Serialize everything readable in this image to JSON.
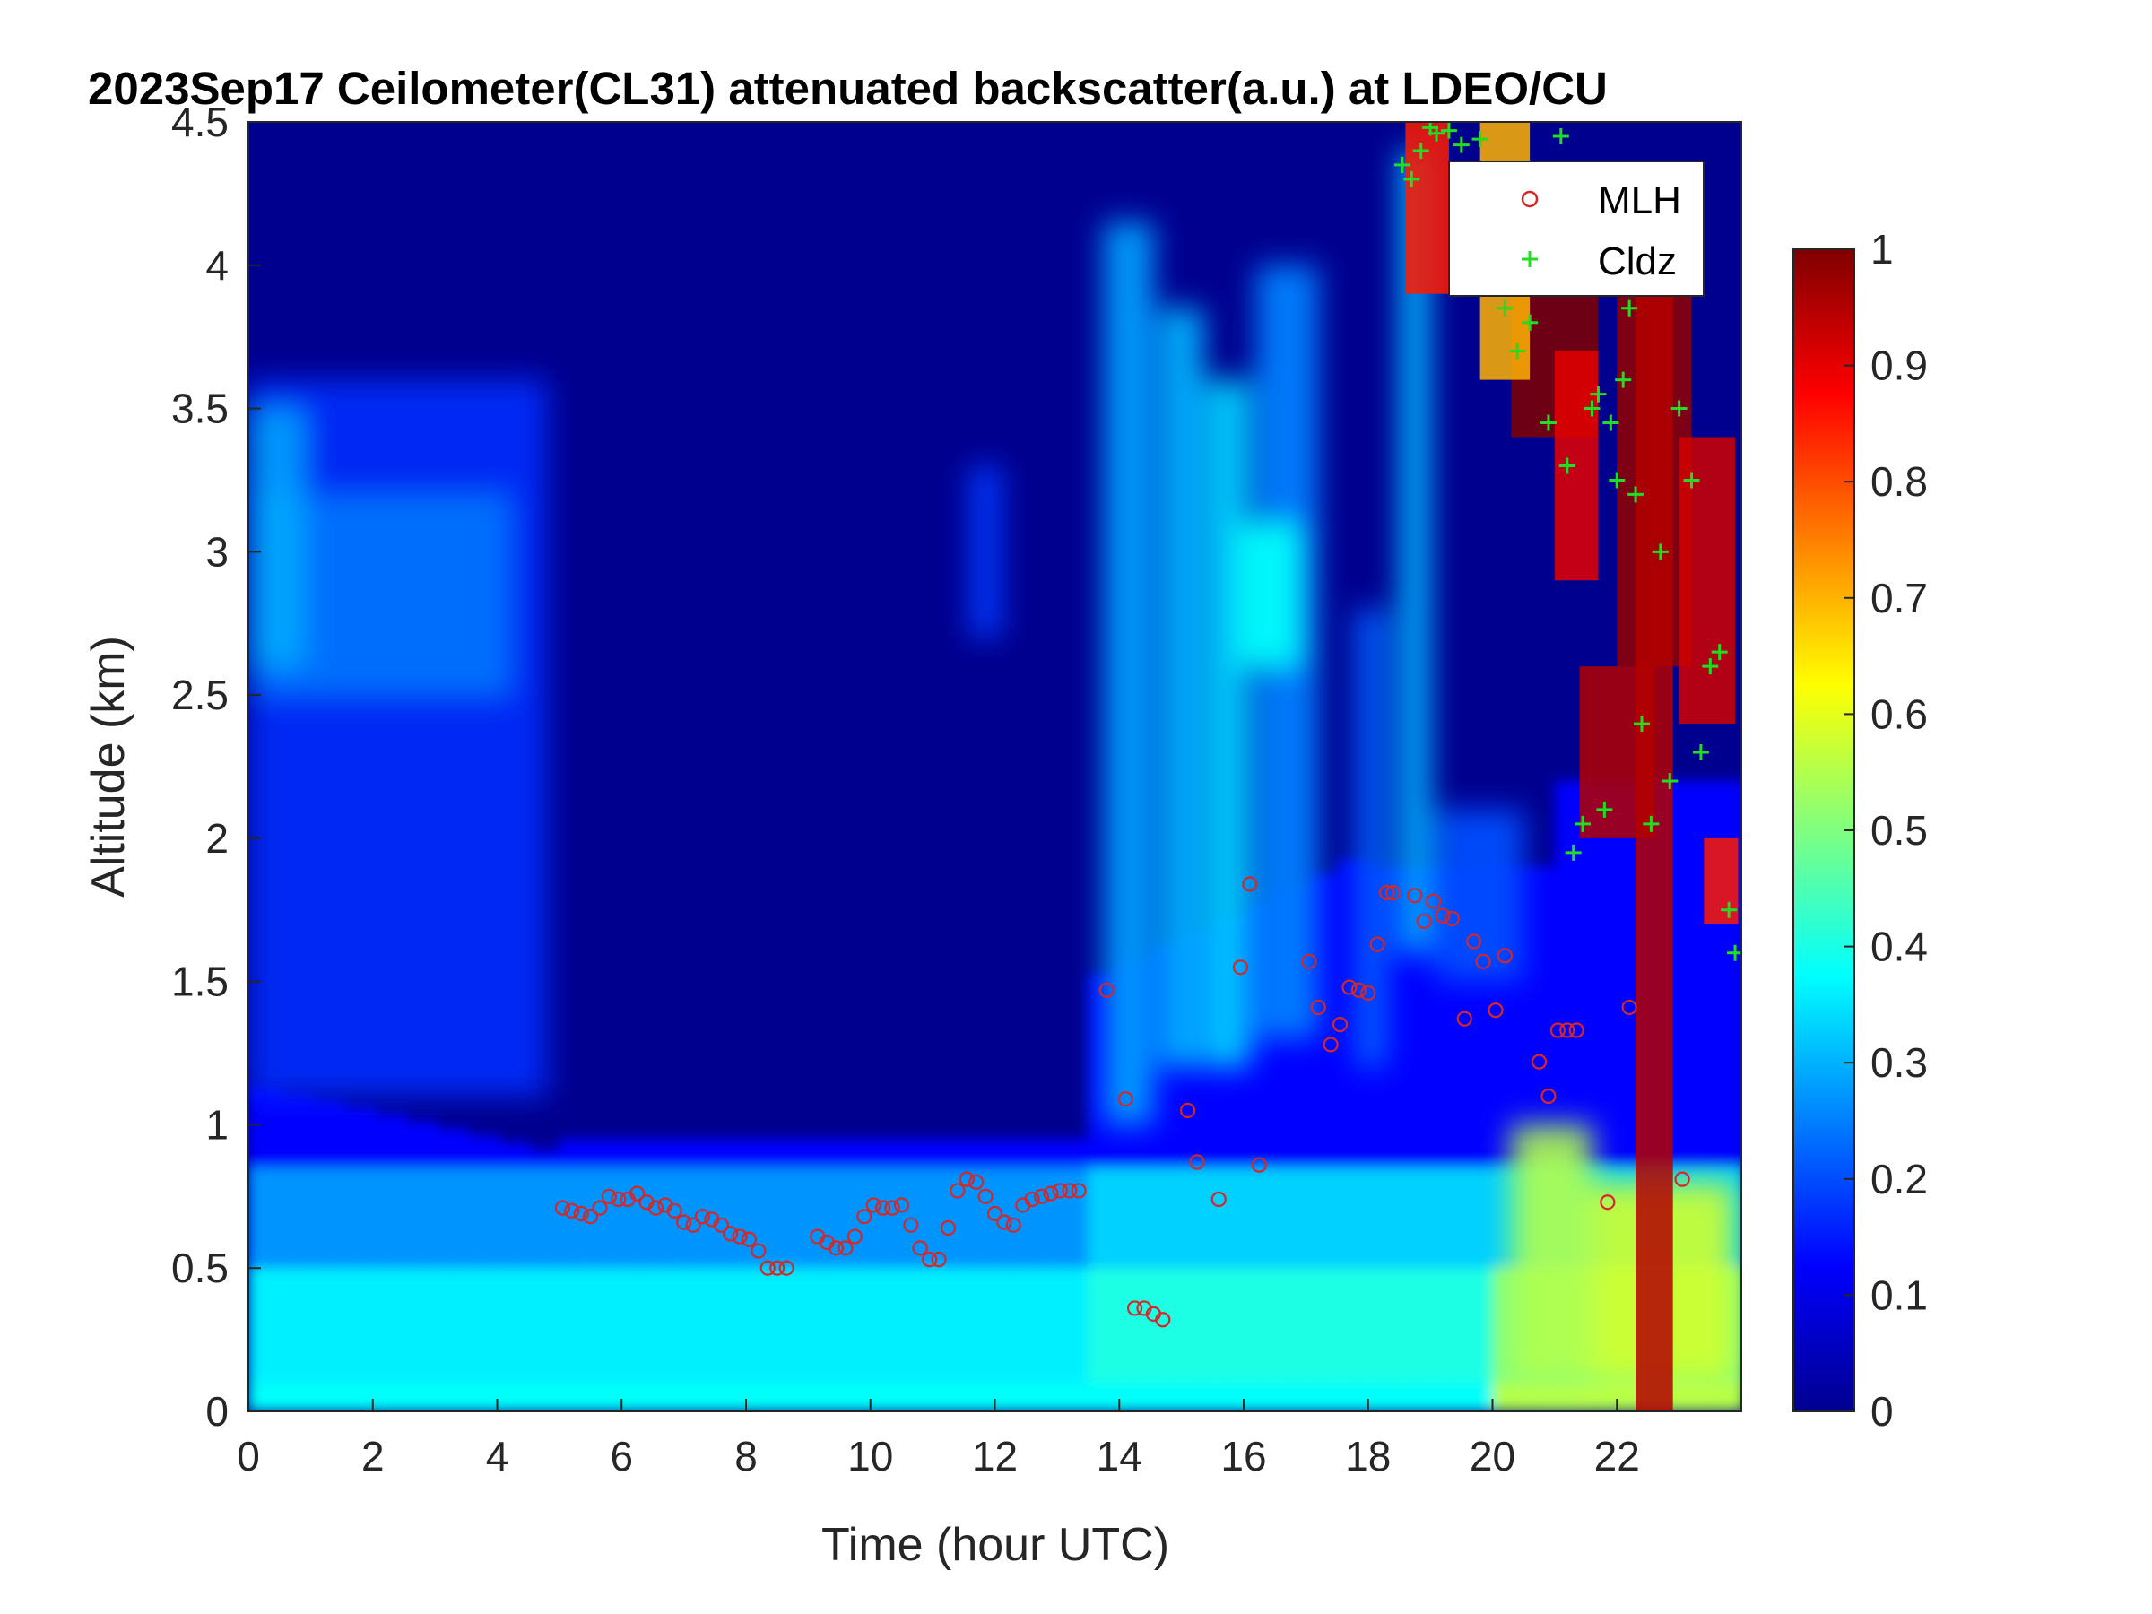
{
  "chart_data": {
    "type": "heatmap",
    "title": "2023Sep17 Ceilometer(CL31) attenuated backscatter(a.u.) at LDEO/CU",
    "xlabel": "Time (hour UTC)",
    "ylabel": "Altitude (km)",
    "xlim": [
      0,
      24
    ],
    "ylim": [
      0,
      4.5
    ],
    "xticks": [
      0,
      2,
      4,
      6,
      8,
      10,
      12,
      14,
      16,
      18,
      20,
      22
    ],
    "yticks": [
      0,
      0.5,
      1,
      1.5,
      2,
      2.5,
      3,
      3.5,
      4,
      4.5
    ],
    "colormap": "jet",
    "colorbar": {
      "min": 0,
      "max": 1,
      "ticks": [
        0,
        0.1,
        0.2,
        0.3,
        0.4,
        0.5,
        0.6,
        0.7,
        0.8,
        0.9,
        1
      ]
    },
    "legend_placement": "top-right",
    "series": [
      {
        "name": "MLH",
        "marker": "circle",
        "color": "#d62728",
        "x": [
          5.05,
          5.2,
          5.35,
          5.5,
          5.65,
          5.8,
          5.95,
          6.1,
          6.25,
          6.4,
          6.55,
          6.7,
          6.85,
          7.0,
          7.15,
          7.3,
          7.45,
          7.6,
          7.75,
          7.9,
          8.05,
          8.2,
          8.35,
          8.5,
          8.65,
          9.15,
          9.3,
          9.45,
          9.6,
          9.75,
          9.9,
          10.05,
          10.2,
          10.35,
          10.5,
          10.65,
          10.8,
          10.95,
          11.1,
          11.25,
          11.4,
          11.55,
          11.7,
          11.85,
          12.0,
          12.15,
          12.3,
          12.45,
          12.6,
          12.75,
          12.9,
          13.05,
          13.2,
          13.35,
          13.8,
          14.1,
          14.25,
          14.4,
          14.55,
          14.7,
          15.1,
          15.25,
          15.6,
          15.95,
          16.1,
          16.25,
          17.05,
          17.2,
          17.4,
          17.55,
          17.7,
          17.85,
          18.0,
          18.15,
          18.3,
          18.4,
          18.75,
          18.9,
          19.05,
          19.2,
          19.35,
          19.55,
          19.7,
          19.85,
          20.05,
          20.2,
          20.75,
          20.9,
          21.05,
          21.2,
          21.35,
          21.85,
          22.2,
          23.05
        ],
        "y": [
          0.71,
          0.7,
          0.69,
          0.68,
          0.71,
          0.75,
          0.74,
          0.74,
          0.76,
          0.73,
          0.71,
          0.72,
          0.7,
          0.66,
          0.65,
          0.68,
          0.67,
          0.65,
          0.62,
          0.61,
          0.6,
          0.56,
          0.5,
          0.5,
          0.5,
          0.61,
          0.59,
          0.57,
          0.57,
          0.61,
          0.68,
          0.72,
          0.71,
          0.71,
          0.72,
          0.65,
          0.57,
          0.53,
          0.53,
          0.64,
          0.77,
          0.81,
          0.8,
          0.75,
          0.69,
          0.66,
          0.65,
          0.72,
          0.74,
          0.75,
          0.76,
          0.77,
          0.77,
          0.77,
          1.47,
          1.09,
          0.36,
          0.36,
          0.34,
          0.32,
          1.05,
          0.87,
          0.74,
          1.55,
          1.84,
          0.86,
          1.57,
          1.41,
          1.28,
          1.35,
          1.48,
          1.47,
          1.46,
          1.63,
          1.81,
          1.81,
          1.8,
          1.71,
          1.78,
          1.73,
          1.72,
          1.37,
          1.64,
          1.57,
          1.4,
          1.59,
          1.22,
          1.1,
          1.33,
          1.33,
          1.33,
          0.73,
          1.41,
          0.81
        ]
      },
      {
        "name": "Cldz",
        "marker": "plus",
        "color": "#22dd22",
        "x": [
          18.55,
          18.7,
          18.85,
          19.0,
          19.1,
          19.3,
          19.5,
          19.8,
          20.2,
          20.4,
          20.6,
          20.9,
          21.1,
          21.2,
          21.3,
          21.45,
          21.6,
          21.7,
          21.8,
          21.9,
          22.0,
          22.1,
          22.2,
          22.3,
          22.4,
          22.55,
          22.7,
          22.85,
          23.0,
          23.2,
          23.35,
          23.5,
          23.65,
          23.8,
          23.9
        ],
        "y": [
          4.35,
          4.3,
          4.4,
          4.48,
          4.46,
          4.47,
          4.42,
          4.44,
          3.85,
          3.7,
          3.8,
          3.45,
          4.45,
          3.3,
          1.95,
          2.05,
          3.5,
          3.55,
          2.1,
          3.45,
          3.25,
          3.6,
          3.85,
          3.2,
          2.4,
          2.05,
          3.0,
          2.2,
          3.5,
          3.25,
          2.3,
          2.6,
          2.65,
          1.75,
          1.6
        ]
      }
    ]
  },
  "legend": {
    "items": [
      {
        "label": "MLH"
      },
      {
        "label": "Cldz"
      }
    ]
  }
}
